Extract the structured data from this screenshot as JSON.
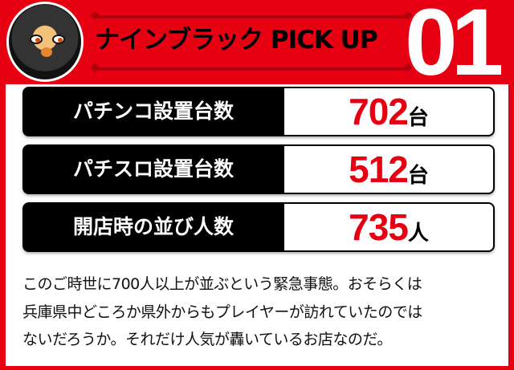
{
  "header": {
    "title": "ナインブラック PICK UP",
    "number": "01",
    "accent": "#e60012"
  },
  "stats": [
    {
      "label": "パチンコ設置台数",
      "value": "702",
      "unit": "台"
    },
    {
      "label": "パチスロ設置台数",
      "value": "512",
      "unit": "台"
    },
    {
      "label": "開店時の並び人数",
      "value": "735",
      "unit": "人"
    }
  ],
  "body": {
    "lines": [
      "このご時世に700人以上が並ぶという緊急事態。おそらくは",
      "兵庫県中どころか県外からもプレイヤーが訪れていたのでは",
      "ないだろうか。それだけ人気が轟いているお店なのだ。"
    ]
  }
}
